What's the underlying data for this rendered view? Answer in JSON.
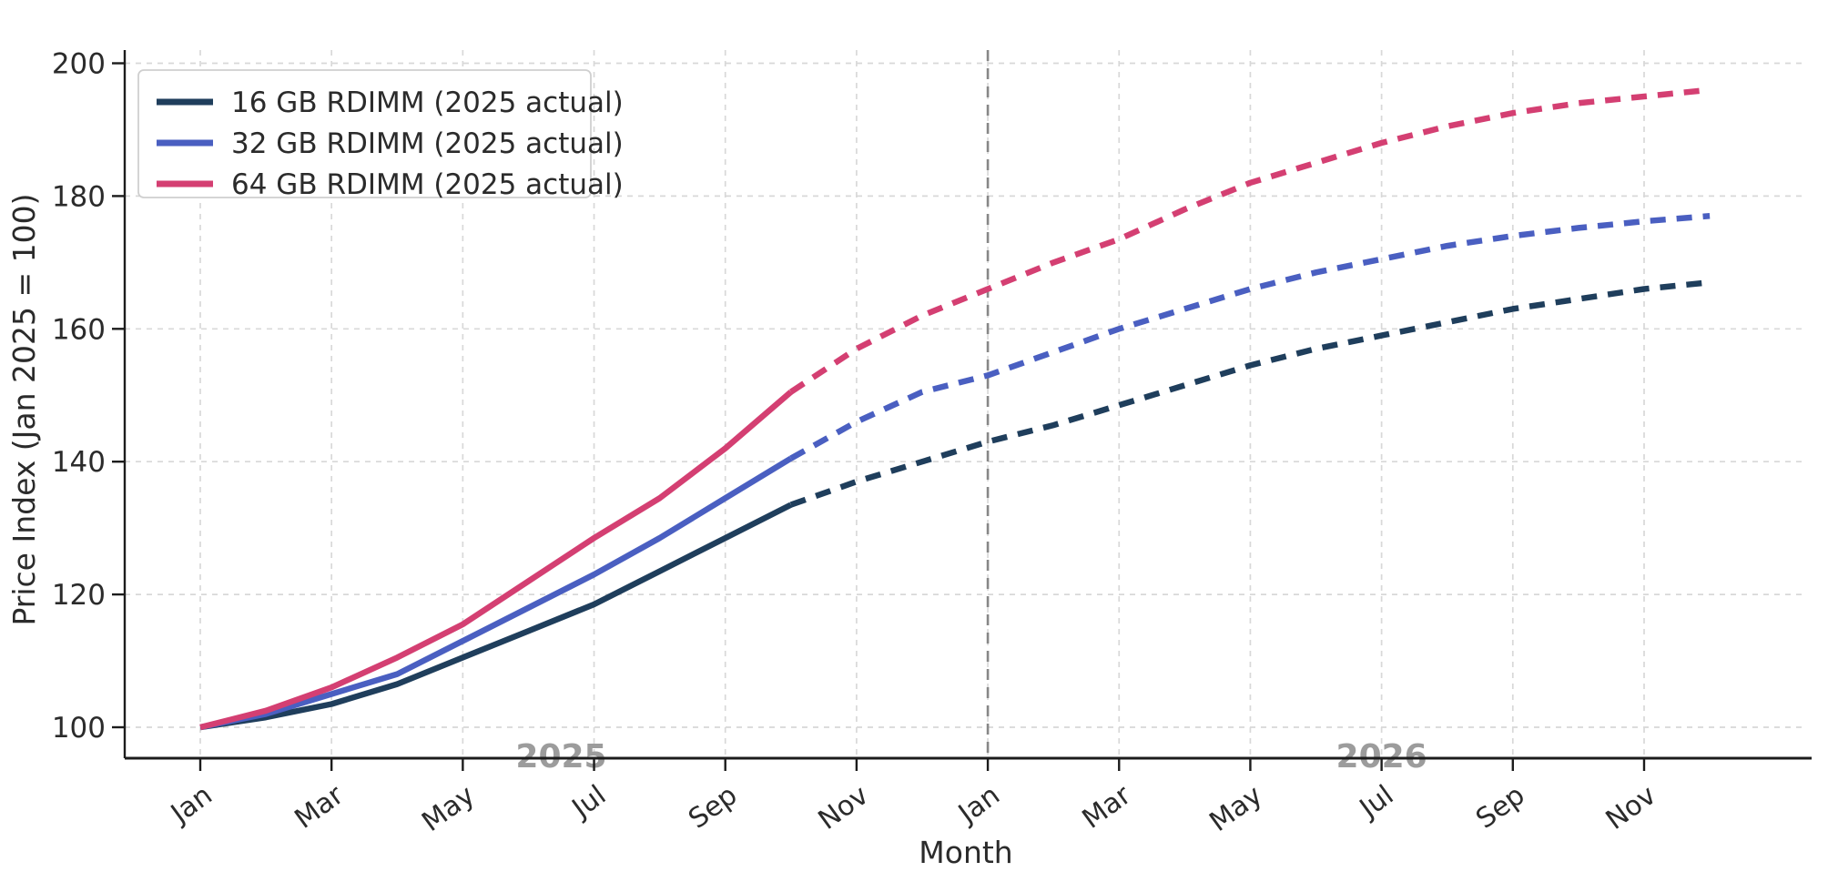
{
  "figure": {
    "background": "#ffffff",
    "axis_color": "#1c1c1c",
    "grid_color": "#d8d8d8",
    "divider_color": "#878787",
    "year_label_color": "#9c9c9c"
  },
  "chart_data": {
    "type": "line",
    "title": "",
    "xlabel": "Month",
    "ylabel": "Price Index (Jan 2025 = 100)",
    "x_months": [
      "2025-01",
      "2025-02",
      "2025-03",
      "2025-04",
      "2025-05",
      "2025-06",
      "2025-07",
      "2025-08",
      "2025-09",
      "2025-10",
      "2025-11",
      "2025-12",
      "2026-01",
      "2026-02",
      "2026-03",
      "2026-04",
      "2026-05",
      "2026-06",
      "2026-07",
      "2026-08",
      "2026-09",
      "2026-10",
      "2026-11",
      "2026-12"
    ],
    "x_tick_labels": [
      "Jan",
      "Mar",
      "May",
      "Jul",
      "Sep",
      "Nov",
      "Jan",
      "Mar",
      "May",
      "Jul",
      "Sep",
      "Nov"
    ],
    "yticks": [
      100,
      120,
      140,
      160,
      180,
      200
    ],
    "ylim": [
      95,
      202
    ],
    "grid": true,
    "legend_position": "upper-left",
    "forecast_start_index": 9,
    "divider_month_index": 12,
    "year_labels": [
      {
        "text": "2025",
        "center_index": 5.5
      },
      {
        "text": "2026",
        "center_index": 18
      }
    ],
    "series": [
      {
        "name": "16 GB RDIMM (2025 actual)",
        "color": "#1f3e5c",
        "solid_until": "2025-10",
        "values": [
          100,
          101.5,
          103.5,
          106.5,
          110.5,
          114.5,
          118.5,
          123.5,
          128.5,
          133.5,
          137,
          140,
          143,
          145.5,
          148.5,
          151.5,
          154.5,
          157,
          159,
          161,
          163,
          164.5,
          166,
          167
        ]
      },
      {
        "name": "32 GB RDIMM (2025 actual)",
        "color": "#4a5fc1",
        "solid_until": "2025-10",
        "values": [
          100,
          102,
          105,
          108,
          113,
          118,
          123,
          128.5,
          134.5,
          140.5,
          146,
          150.5,
          153,
          156.5,
          160,
          163,
          166,
          168.5,
          170.5,
          172.5,
          174,
          175.2,
          176.2,
          177
        ]
      },
      {
        "name": "64 GB RDIMM (2025 actual)",
        "color": "#d43f72",
        "solid_until": "2025-10",
        "values": [
          100,
          102.5,
          106,
          110.5,
          115.5,
          122,
          128.5,
          134.5,
          142,
          150.5,
          157,
          162,
          166,
          170,
          173.5,
          178,
          182,
          185,
          188,
          190.5,
          192.5,
          194,
          195,
          196
        ]
      }
    ]
  }
}
